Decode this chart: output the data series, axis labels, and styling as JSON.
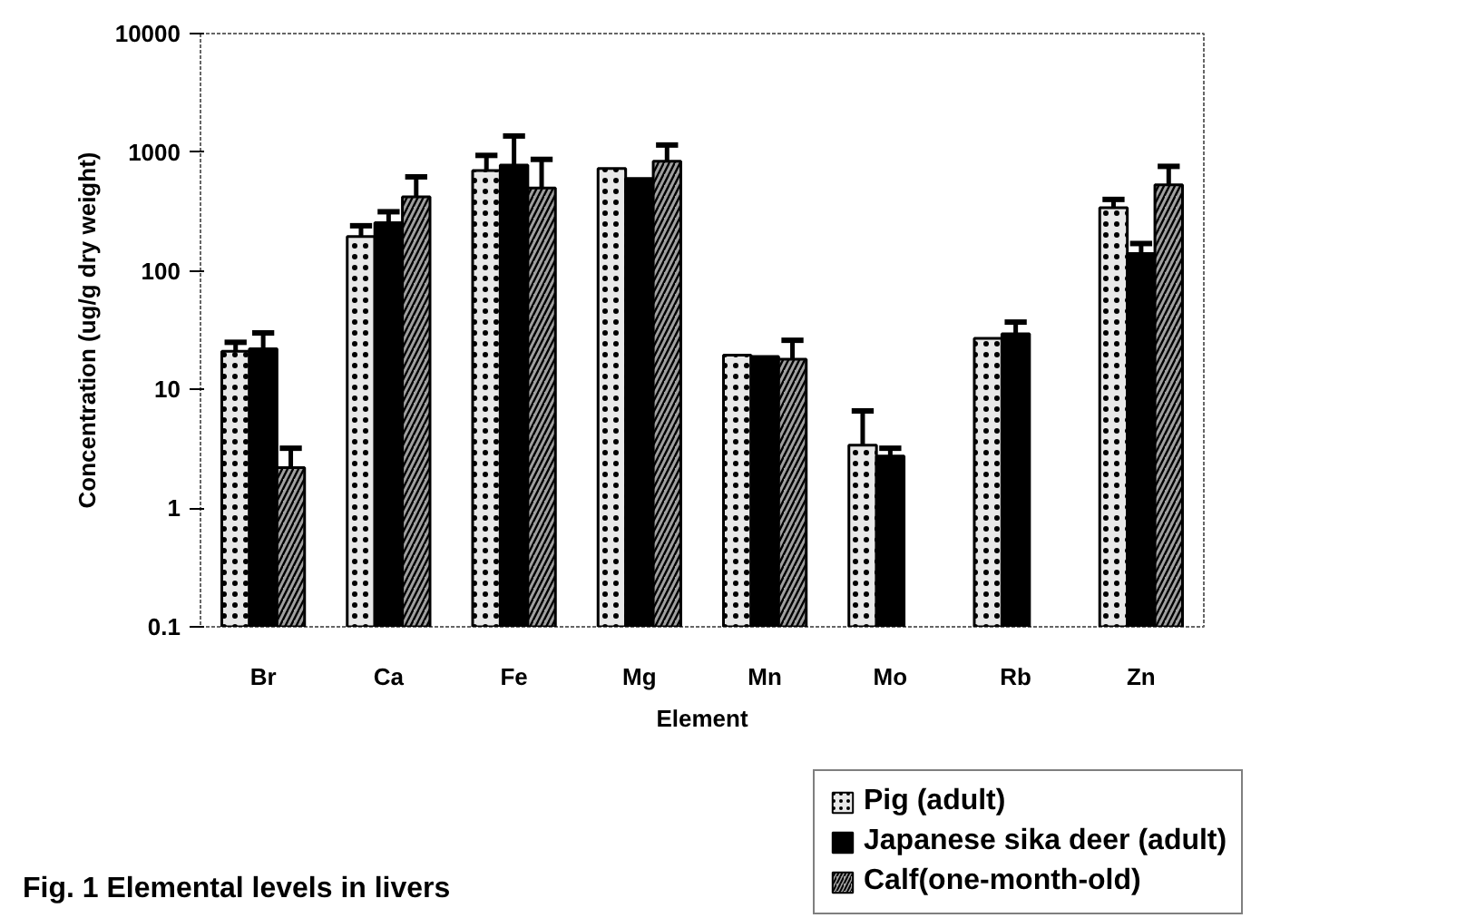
{
  "chart_data": {
    "type": "bar",
    "title": "Fig. 1  Elemental levels in livers",
    "xlabel": "Element",
    "ylabel": "Concentration (ug/g dry weight)",
    "categories": [
      "Br",
      "Ca",
      "Fe",
      "Mg",
      "Mn",
      "Mo",
      "Rb",
      "Zn"
    ],
    "series": [
      {
        "name": "Pig (adult)",
        "color": "#e8e8e8",
        "values": [
          21,
          195,
          700,
          730,
          19.5,
          3.4,
          27,
          340
        ],
        "errors": [
          [
            21,
            25
          ],
          [
            195,
            240
          ],
          [
            700,
            940
          ],
          null,
          null,
          [
            3.4,
            6.6
          ],
          null,
          [
            340,
            400
          ]
        ]
      },
      {
        "name": "Japanese sika deer (adult)",
        "color": "#000000",
        "values": [
          22,
          255,
          780,
          600,
          19,
          2.75,
          29.5,
          140
        ],
        "errors": [
          [
            22,
            30
          ],
          [
            255,
            315
          ],
          [
            780,
            1370
          ],
          null,
          null,
          [
            2.75,
            3.2
          ],
          [
            29.5,
            37
          ],
          [
            140,
            170
          ]
        ]
      },
      {
        "name": "Calf(one-month-old)",
        "color": "#a0a0a0",
        "values": [
          2.2,
          420,
          500,
          840,
          18,
          null,
          null,
          530
        ],
        "errors": [
          [
            2.2,
            3.2
          ],
          [
            420,
            620
          ],
          [
            500,
            870
          ],
          [
            840,
            1150
          ],
          [
            18,
            26
          ],
          null,
          null,
          [
            530,
            760
          ]
        ]
      }
    ],
    "log": true,
    "ylim": [
      0.1,
      10000
    ],
    "yticks": [
      0.1,
      1,
      10,
      100,
      1000,
      10000
    ],
    "grid": false,
    "legend": "bottom right"
  }
}
